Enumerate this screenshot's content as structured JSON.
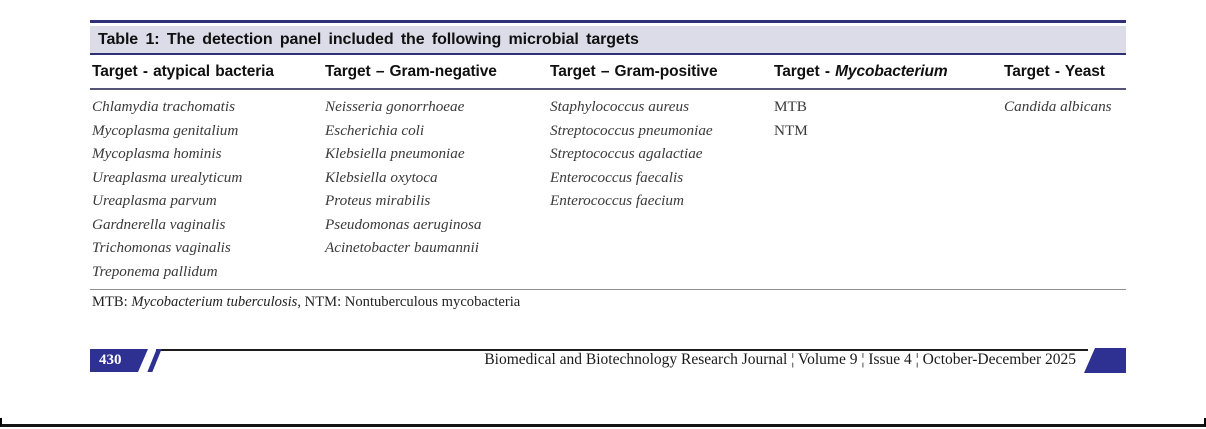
{
  "table": {
    "title": "Table 1: The detection panel included the following microbial targets",
    "columns": [
      {
        "header": "Target - atypical bacteria",
        "header_em": "",
        "italic_items": true,
        "items": [
          "Chlamydia trachomatis",
          "Mycoplasma genitalium",
          "Mycoplasma hominis",
          "Ureaplasma urealyticum",
          "Ureaplasma parvum",
          "Gardnerella vaginalis",
          "Trichomonas vaginalis",
          "Treponema pallidum"
        ]
      },
      {
        "header": "Target – Gram-negative",
        "header_em": "",
        "italic_items": true,
        "items": [
          "Neisseria gonorrhoeae",
          "Escherichia coli",
          "Klebsiella pneumoniae",
          "Klebsiella oxytoca",
          "Proteus mirabilis",
          "Pseudomonas aeruginosa",
          "Acinetobacter baumannii"
        ]
      },
      {
        "header": "Target – Gram-positive",
        "header_em": "",
        "italic_items": true,
        "items": [
          "Staphylococcus aureus",
          "Streptococcus pneumoniae",
          "Streptococcus agalactiae",
          "Enterococcus faecalis",
          "Enterococcus faecium"
        ]
      },
      {
        "header": "Target - ",
        "header_em": "Mycobacterium",
        "italic_items": false,
        "items": [
          "MTB",
          "NTM"
        ]
      },
      {
        "header": "Target - Yeast",
        "header_em": "",
        "italic_items": true,
        "items": [
          "Candida albicans"
        ]
      }
    ],
    "footnote": {
      "prefix": "MTB: ",
      "em": "Mycobacterium tuberculosis",
      "suffix": ", NTM: Nontuberculous mycobacteria"
    }
  },
  "footer": {
    "page_number": "430",
    "journal_line": "Biomedical and Biotechnology Research Journal ¦ Volume 9 ¦ Issue 4 ¦ October-December 2025"
  },
  "colors": {
    "accent_navy": "#2e3191",
    "band_background": "#dcdbe8"
  }
}
